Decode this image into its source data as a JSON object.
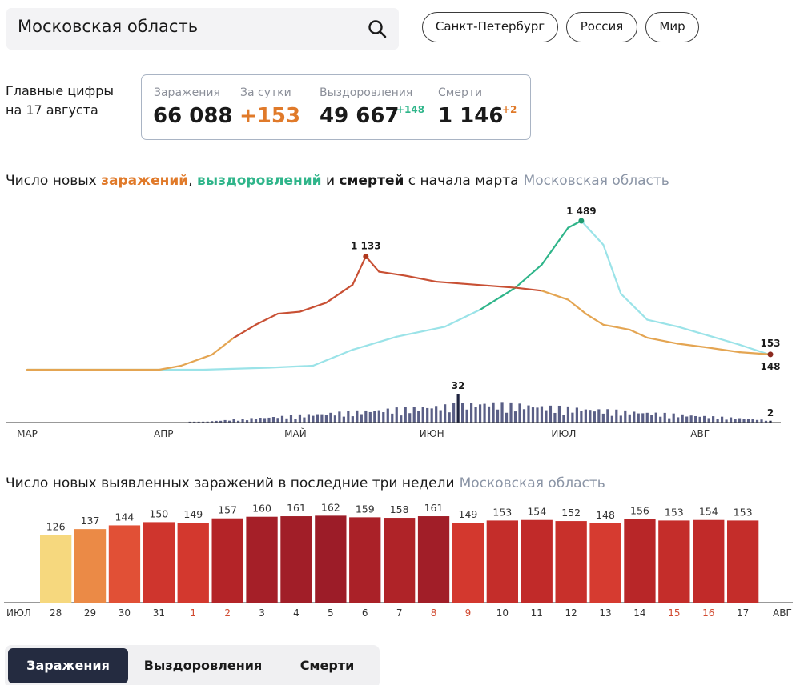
{
  "search": {
    "value": "Московская область"
  },
  "regions": [
    "Санкт-Петербург",
    "Россия",
    "Мир"
  ],
  "main_figures": {
    "caption_line1": "Главные цифры",
    "caption_line2": "на 17 августа",
    "infections_label": "Заражения",
    "infections_value": "66 088",
    "daily_label": "За сутки",
    "daily_value": "+153",
    "recoveries_label": "Выздоровления",
    "recoveries_value": "49 667",
    "recoveries_delta": "+148",
    "deaths_label": "Смерти",
    "deaths_value": "1 146",
    "deaths_delta": "+2"
  },
  "colors": {
    "infections": "#e07a2a",
    "recoveries": "#2fb58a",
    "deaths_bars": "#34395c",
    "region_label": "#8b95a6"
  },
  "timeline": {
    "title_part1": "Число новых ",
    "title_infections": "заражений",
    "title_sep": ", ",
    "title_recoveries": "выздоровлений",
    "title_and": " и ",
    "title_deaths": "смертей",
    "title_part2": " с начала марта",
    "region": "Московская область",
    "months": [
      "МАР",
      "АПР",
      "МАЙ",
      "ИЮН",
      "ИЮЛ",
      "АВГ"
    ],
    "peak_infections_label": "1 133",
    "peak_recoveries_label": "1 489",
    "last_infections_label": "153",
    "last_recoveries_label": "148",
    "peak_deaths_label": "32",
    "last_deaths_label": "2"
  },
  "chart_data": [
    {
      "type": "line",
      "title": "Число новых заражений, выздоровлений и смертей с начала марта",
      "x_ticks": [
        "МАР",
        "АПР",
        "МАЙ",
        "ИЮН",
        "ИЮЛ",
        "АВГ"
      ],
      "x_range": [
        "1 мар",
        "17 авг"
      ],
      "series": [
        {
          "name": "заражений",
          "points": [
            [
              "1 мар",
              0
            ],
            [
              "31 мар",
              0
            ],
            [
              "5 апр",
              40
            ],
            [
              "12 апр",
              150
            ],
            [
              "17 апр",
              320
            ],
            [
              "22 апр",
              450
            ],
            [
              "27 апр",
              560
            ],
            [
              "2 мая",
              580
            ],
            [
              "8 мая",
              670
            ],
            [
              "14 мая",
              850
            ],
            [
              "17 мая",
              1133
            ],
            [
              "20 мая",
              980
            ],
            [
              "26 мая",
              940
            ],
            [
              "2 июн",
              880
            ],
            [
              "8 июн",
              860
            ],
            [
              "14 июн",
              840
            ],
            [
              "20 июн",
              820
            ],
            [
              "26 июн",
              790
            ],
            [
              "2 июл",
              700
            ],
            [
              "6 июл",
              560
            ],
            [
              "10 июл",
              450
            ],
            [
              "16 июл",
              400
            ],
            [
              "20 июл",
              320
            ],
            [
              "27 июл",
              260
            ],
            [
              "3 авг",
              220
            ],
            [
              "10 авг",
              175
            ],
            [
              "17 авг",
              153
            ]
          ]
        },
        {
          "name": "выздоровлений",
          "points": [
            [
              "1 мар",
              0
            ],
            [
              "10 апр",
              0
            ],
            [
              "25 апр",
              20
            ],
            [
              "5 мая",
              40
            ],
            [
              "14 мая",
              200
            ],
            [
              "24 мая",
              330
            ],
            [
              "4 июн",
              430
            ],
            [
              "12 июн",
              600
            ],
            [
              "20 июн",
              820
            ],
            [
              "26 июн",
              1050
            ],
            [
              "2 июл",
              1420
            ],
            [
              "5 июл",
              1489
            ],
            [
              "10 июл",
              1250
            ],
            [
              "14 июл",
              760
            ],
            [
              "20 июл",
              500
            ],
            [
              "27 июл",
              430
            ],
            [
              "3 авг",
              340
            ],
            [
              "10 авг",
              250
            ],
            [
              "17 авг",
              148
            ]
          ]
        },
        {
          "name": "смертей",
          "type": "bar",
          "peak_value": 32,
          "last_value": 2
        }
      ]
    },
    {
      "type": "bar",
      "title": "Число новых выявленных заражений в последние три недели",
      "categories": [
        "28",
        "29",
        "30",
        "31",
        "1",
        "2",
        "3",
        "4",
        "5",
        "6",
        "7",
        "8",
        "9",
        "10",
        "11",
        "12",
        "13",
        "14",
        "15",
        "16",
        "17"
      ],
      "weekend_categories": [
        "1",
        "2",
        "8",
        "9",
        "15",
        "16"
      ],
      "values": [
        126,
        137,
        144,
        150,
        149,
        157,
        160,
        161,
        162,
        159,
        158,
        161,
        149,
        153,
        154,
        152,
        148,
        156,
        153,
        154,
        153
      ],
      "x_start_label": "ИЮЛ",
      "x_end_label": "АВГ",
      "ylim": [
        0,
        170
      ]
    }
  ],
  "weekly": {
    "title": "Число новых выявленных заражений в последние три недели",
    "region": "Московская область"
  },
  "tabs": [
    "Заражения",
    "Выздоровления",
    "Смерти"
  ],
  "active_tab": 0
}
